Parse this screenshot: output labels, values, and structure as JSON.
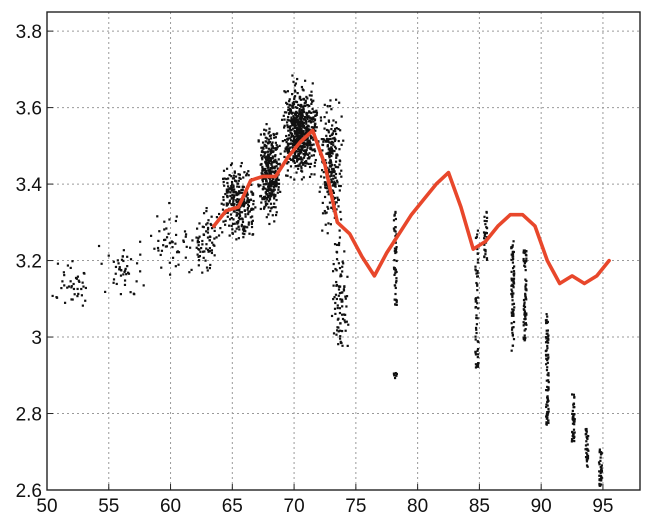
{
  "chart_data": {
    "type": "scatter",
    "title": "",
    "xlabel": "",
    "ylabel": "",
    "xlim": [
      50,
      98
    ],
    "ylim": [
      2.6,
      3.85
    ],
    "grid": true,
    "x_ticks": [
      50,
      55,
      60,
      65,
      70,
      75,
      80,
      85,
      90,
      95
    ],
    "y_ticks": [
      2.6,
      2.8,
      3,
      3.2,
      3.4,
      3.6,
      3.8
    ],
    "x_tick_labels": [
      "50",
      "55",
      "60",
      "65",
      "70",
      "75",
      "80",
      "85",
      "90",
      "95"
    ],
    "y_tick_labels": [
      "2.6",
      "2.8",
      "3",
      "3.2",
      "3.4",
      "3.6",
      "3.8"
    ],
    "series": [
      {
        "type": "line",
        "color": "#e8472b",
        "points": [
          [
            63.5,
            3.29
          ],
          [
            64.5,
            3.33
          ],
          [
            65.5,
            3.34
          ],
          [
            66.5,
            3.41
          ],
          [
            67.5,
            3.42
          ],
          [
            68.5,
            3.42
          ],
          [
            69.5,
            3.47
          ],
          [
            70.5,
            3.51
          ],
          [
            71.5,
            3.54
          ],
          [
            72.5,
            3.45
          ],
          [
            73.5,
            3.3
          ],
          [
            74.5,
            3.27
          ],
          [
            75.5,
            3.21
          ],
          [
            76.5,
            3.16
          ],
          [
            77.5,
            3.22
          ],
          [
            78.5,
            3.27
          ],
          [
            79.5,
            3.32
          ],
          [
            80.5,
            3.36
          ],
          [
            81.5,
            3.4
          ],
          [
            82.5,
            3.43
          ],
          [
            83.5,
            3.34
          ],
          [
            84.5,
            3.23
          ],
          [
            85.5,
            3.25
          ],
          [
            86.5,
            3.29
          ],
          [
            87.5,
            3.32
          ],
          [
            88.5,
            3.32
          ],
          [
            89.5,
            3.29
          ],
          [
            90.5,
            3.2
          ],
          [
            91.5,
            3.14
          ],
          [
            92.5,
            3.16
          ],
          [
            93.5,
            3.14
          ],
          [
            94.5,
            3.16
          ],
          [
            95.5,
            3.2
          ]
        ]
      },
      {
        "type": "scatter",
        "color": "#111111",
        "clusters": [
          {
            "x": [
              50,
              54
            ],
            "y": [
              3.05,
              3.22
            ],
            "n": 40
          },
          {
            "x": [
              54,
              58
            ],
            "y": [
              3.08,
              3.28
            ],
            "n": 45
          },
          {
            "x": [
              58,
              62
            ],
            "y": [
              3.12,
              3.36
            ],
            "n": 50
          },
          {
            "x": [
              62,
              64
            ],
            "y": [
              3.15,
              3.38
            ],
            "n": 60
          },
          {
            "x": [
              64,
              67
            ],
            "y": [
              3.22,
              3.48
            ],
            "n": 280
          },
          {
            "x": [
              67,
              69
            ],
            "y": [
              3.28,
              3.58
            ],
            "n": 360
          },
          {
            "x": [
              69,
              72
            ],
            "y": [
              3.38,
              3.7
            ],
            "n": 620
          },
          {
            "x": [
              72,
              74
            ],
            "y": [
              3.22,
              3.66
            ],
            "n": 240
          },
          {
            "x": [
              73,
              74.5
            ],
            "y": [
              2.9,
              3.3
            ],
            "n": 90
          }
        ],
        "columns": [
          {
            "x": 62.2,
            "y": [
              3.18,
              3.28
            ],
            "n": 12
          },
          {
            "x": 78.2,
            "y": [
              3.08,
              3.33
            ],
            "n": 50
          },
          {
            "x": 78.2,
            "y": [
              2.89,
              2.91
            ],
            "n": 8
          },
          {
            "x": 84.8,
            "y": [
              2.92,
              3.28
            ],
            "n": 60
          },
          {
            "x": 85.5,
            "y": [
              3.2,
              3.33
            ],
            "n": 30
          },
          {
            "x": 87.7,
            "y": [
              2.96,
              3.26
            ],
            "n": 70
          },
          {
            "x": 88.7,
            "y": [
              2.99,
              3.23
            ],
            "n": 70
          },
          {
            "x": 90.5,
            "y": [
              2.77,
              3.06
            ],
            "n": 80
          },
          {
            "x": 92.6,
            "y": [
              2.72,
              2.85
            ],
            "n": 40
          },
          {
            "x": 93.7,
            "y": [
              2.66,
              2.76
            ],
            "n": 35
          },
          {
            "x": 94.8,
            "y": [
              2.61,
              2.71
            ],
            "n": 35
          }
        ]
      }
    ]
  }
}
